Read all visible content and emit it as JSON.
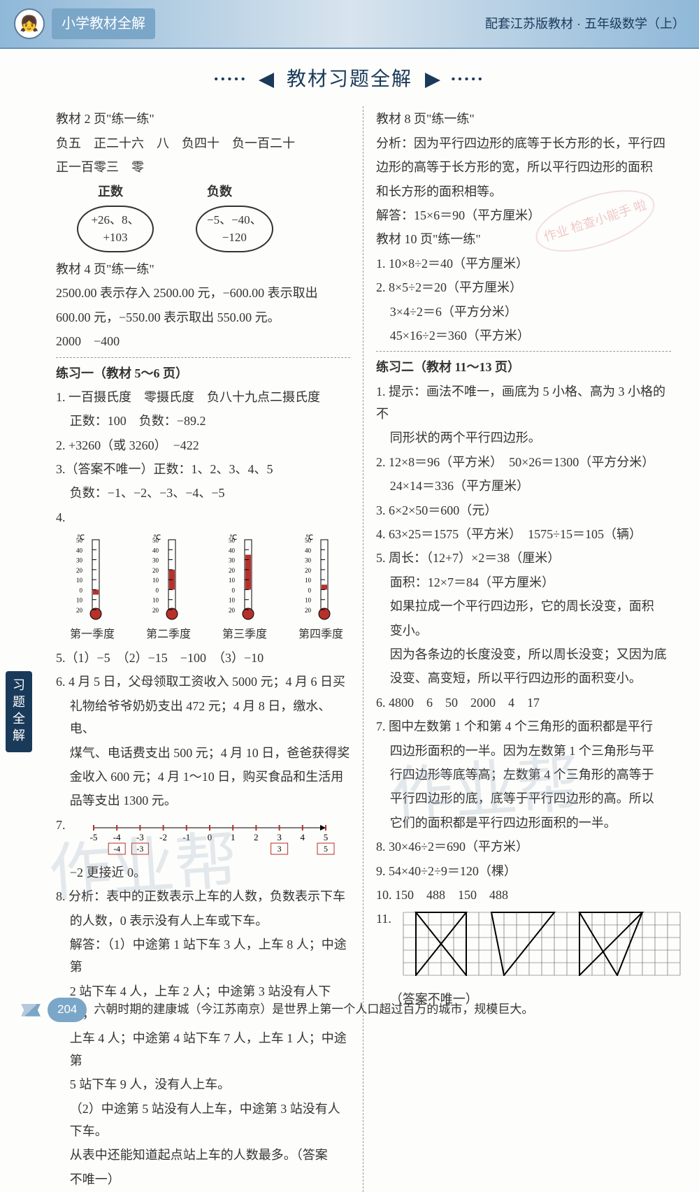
{
  "header": {
    "series": "小学教材全解",
    "edition": "配套江苏版教材 · 五年级数学（上）"
  },
  "title": "教材习题全解",
  "side_tab": "习题全解",
  "left": {
    "s1_head": "教材 2 页\"练一练\"",
    "s1_l1": "负五　正二十六　八　负四十　负一百二十",
    "s1_l2": "正一百零三　零",
    "bubble_headers": {
      "pos": "正数",
      "neg": "负数"
    },
    "bubbles": {
      "pos": "+26、8、\n+103",
      "neg": "−5、−40、\n−120"
    },
    "s2_head": "教材 4 页\"练一练\"",
    "s2_l1": "2500.00 表示存入 2500.00 元，−600.00 表示取出",
    "s2_l2": "600.00 元，−550.00 表示取出 550.00 元。",
    "s2_l3": "2000　−400",
    "ex1_head": "练习一（教材 5～6 页）",
    "q1a": "1. 一百摄氏度　零摄氏度　负八十九点二摄氏度",
    "q1b": "正数：100　负数：−89.2",
    "q2": "2. +3260（或 3260）　−422",
    "q3a": "3.（答案不唯一）正数：1、2、3、4、5",
    "q3b": "负数：−1、−2、−3、−4、−5",
    "q4_label": "4.",
    "thermo": {
      "scale": [
        "50",
        "40",
        "30",
        "20",
        "10",
        "0",
        "10",
        "20"
      ],
      "unit": "℃",
      "items": [
        {
          "label": "第一季度",
          "fill_from": -5,
          "fill_to": 0,
          "color": "#b7312a"
        },
        {
          "label": "第二季度",
          "fill_from": 0,
          "fill_to": 20,
          "color": "#b7312a"
        },
        {
          "label": "第三季度",
          "fill_from": 0,
          "fill_to": 35,
          "color": "#b7312a"
        },
        {
          "label": "第四季度",
          "fill_from": 0,
          "fill_to": 5,
          "color": "#b7312a"
        }
      ]
    },
    "q5": "5.（1）−5　（2）−15　−100　（3）−10",
    "q6a": "6. 4 月 5 日，父母领取工资收入 5000 元；4 月 6 日买",
    "q6b": "礼物给爷爷奶奶支出 472 元；4 月 8 日，缴水、电、",
    "q6c": "煤气、电话费支出 500 元；4 月 10 日，爸爸获得奖",
    "q6d": "金收入 600 元；4 月 1～10 日，购买食品和生活用",
    "q6e": "品等支出 1300 元。",
    "q7_label": "7.",
    "numberline": {
      "min": -5,
      "max": 5,
      "ticks": [
        -5,
        -4,
        -3,
        -2,
        -1,
        0,
        1,
        2,
        3,
        4,
        5
      ],
      "boxes_below": [
        -4,
        -3,
        3,
        5
      ],
      "arrow_color": "#b7312a",
      "box_border": "#b7312a"
    },
    "q7b": "−2 更接近 0。",
    "q8a": "8. 分析：表中的正数表示上车的人数，负数表示下车",
    "q8b": "的人数，0 表示没有人上车或下车。",
    "q8c": "解答：（1）中途第 1 站下车 3 人，上车 8 人；中途第",
    "q8d": "2 站下车 4 人，上车 2 人；中途第 3 站没有人下车，",
    "q8e": "上车 4 人；中途第 4 站下车 7 人，上车 1 人；中途第",
    "q8f": "5 站下车 9 人，没有人上车。",
    "q8g": "（2）中途第 5 站没有人上车，中途第 3 站没有人下车。",
    "q8h": "从表中还能知道起点站上车的人数最多。（答案",
    "q8i": "不唯一）"
  },
  "right": {
    "s1_head": "教材 8 页\"练一练\"",
    "s1_l1": "分析：因为平行四边形的底等于长方形的长，平行四",
    "s1_l2": "边形的高等于长方形的宽，所以平行四边形的面积",
    "s1_l3": "和长方形的面积相等。",
    "s1_l4": "解答：15×6＝90（平方厘米）",
    "s2_head": "教材 10 页\"练一练\"",
    "s2_1": "1. 10×8÷2＝40（平方厘米）",
    "s2_2a": "2. 8×5÷2＝20（平方厘米）",
    "s2_2b": "3×4÷2＝6（平方分米）",
    "s2_2c": "45×16÷2＝360（平方米）",
    "ex2_head": "练习二（教材 11～13 页）",
    "q1a": "1. 提示：画法不唯一，画底为 5 小格、高为 3 小格的不",
    "q1b": "同形状的两个平行四边形。",
    "q2a": "2. 12×8＝96（平方米）　50×26＝1300（平方分米）",
    "q2b": "24×14＝336（平方厘米）",
    "q3": "3. 6×2×50＝600（元）",
    "q4": "4. 63×25＝1575（平方米）　1575÷15＝105（辆）",
    "q5a": "5. 周长：（12+7）×2＝38（厘米）",
    "q5b": "面积：12×7＝84（平方厘米）",
    "q5c": "如果拉成一个平行四边形，它的周长没变，面积",
    "q5d": "变小。",
    "q5e": "因为各条边的长度没变，所以周长没变；又因为底",
    "q5f": "没变、高变短，所以平行四边形的面积变小。",
    "q6": "6. 4800　6　50　2000　4　17",
    "q7a": "7. 图中左数第 1 个和第 4 个三角形的面积都是平行",
    "q7b": "四边形面积的一半。因为左数第 1 个三角形与平",
    "q7c": "行四边形等底等高；左数第 4 个三角形的高等于",
    "q7d": "平行四边形的底，底等于平行四边形的高。所以",
    "q7e": "它们的面积都是平行四边形面积的一半。",
    "q8": "8. 30×46÷2＝690（平方米）",
    "q9": "9. 54×40÷2÷9＝120（棵）",
    "q10": "10. 150　488　150　488",
    "q11_label": "11.",
    "grid": {
      "rows": 5,
      "cols": 22,
      "cell": 18,
      "stroke": "#555",
      "triangles": [
        {
          "pts": [
            [
              1,
              0
            ],
            [
              5,
              0
            ],
            [
              1,
              5
            ]
          ],
          "fill": "none"
        },
        {
          "pts": [
            [
              1,
              0
            ],
            [
              5,
              0
            ],
            [
              5,
              5
            ]
          ],
          "fill": "none"
        },
        {
          "pts": [
            [
              7,
              0
            ],
            [
              12,
              0
            ],
            [
              8,
              5
            ]
          ],
          "fill": "none"
        },
        {
          "pts": [
            [
              14,
              0
            ],
            [
              19,
              0
            ],
            [
              17,
              5
            ]
          ],
          "fill": "none"
        },
        {
          "pts": [
            [
              14,
              0
            ],
            [
              19,
              0
            ],
            [
              14,
              5
            ]
          ],
          "fill": "none"
        }
      ],
      "tri_color": "#000",
      "tri_width": 2
    },
    "q11b": "（答案不唯一）"
  },
  "footer": {
    "page": "204",
    "fact": "六朝时期的建康城（今江苏南京）是世界上第一个人口超过百万的城市，规模巨大。"
  },
  "watermark": "作业帮",
  "stamp": "作业\n检查小能手\n啦"
}
